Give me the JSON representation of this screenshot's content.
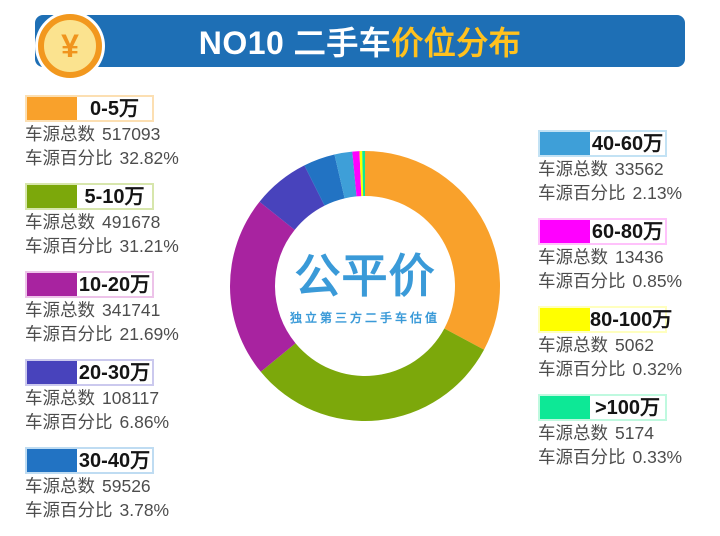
{
  "header": {
    "coin_symbol": "¥",
    "title_main": "NO10 二手车",
    "title_accent": "价位分布",
    "bar_color": "#1E6FB5",
    "accent_color": "#FFC11E"
  },
  "logo": {
    "name": "公平价",
    "subtitle": "独立第三方二手车估值",
    "color": "#3A9AD8"
  },
  "labels": {
    "total_prefix": "车源总数",
    "percent_prefix": "车源百分比"
  },
  "chart_data": {
    "type": "pie",
    "subtype": "donut",
    "title": "NO10 二手车价位分布",
    "start_angle_deg": -90,
    "direction": "clockwise",
    "legend_position": "left-and-right",
    "categories": [
      "0-5万",
      "5-10万",
      "10-20万",
      "20-30万",
      "30-40万",
      "40-60万",
      "60-80万",
      "80-100万",
      ">100万"
    ],
    "values": [
      517093,
      491678,
      341741,
      108117,
      59526,
      33562,
      13436,
      5062,
      5174
    ],
    "percentages": [
      32.82,
      31.21,
      21.69,
      6.86,
      3.78,
      2.13,
      0.85,
      0.32,
      0.33
    ],
    "colors": [
      "#F9A12B",
      "#7CA80B",
      "#A823A0",
      "#4843BC",
      "#2273C3",
      "#3E9FD8",
      "#FF00FF",
      "#FFFF00",
      "#0DE896"
    ]
  },
  "legend": {
    "left": [
      {
        "range": "0-5万",
        "total": "517093",
        "percent": "32.82%",
        "color": "#F9A12B",
        "tint": "#FCDFB2"
      },
      {
        "range": "5-10万",
        "total": "491678",
        "percent": "31.21%",
        "color": "#7CA80B",
        "tint": "#D7E6AC"
      },
      {
        "range": "10-20万",
        "total": "341741",
        "percent": "21.69%",
        "color": "#A823A0",
        "tint": "#EDC3E9"
      },
      {
        "range": "20-30万",
        "total": "108117",
        "percent": "6.86%",
        "color": "#4843BC",
        "tint": "#CBC9EE"
      },
      {
        "range": "30-40万",
        "total": "59526",
        "percent": "3.78%",
        "color": "#2273C3",
        "tint": "#BFDCF2"
      }
    ],
    "right": [
      {
        "range": "40-60万",
        "total": "33562",
        "percent": "2.13%",
        "color": "#3E9FD8",
        "tint": "#C3E2F4"
      },
      {
        "range": "60-80万",
        "total": "13436",
        "percent": "0.85%",
        "color": "#FF00FF",
        "tint": "#FFC2FB"
      },
      {
        "range": "80-100万",
        "total": "5062",
        "percent": "0.32%",
        "color": "#FFFF00",
        "tint": "#FFFFBF"
      },
      {
        "range": ">100万",
        "total": "5174",
        "percent": "0.33%",
        "color": "#0DE896",
        "tint": "#BFF9DF"
      }
    ]
  }
}
